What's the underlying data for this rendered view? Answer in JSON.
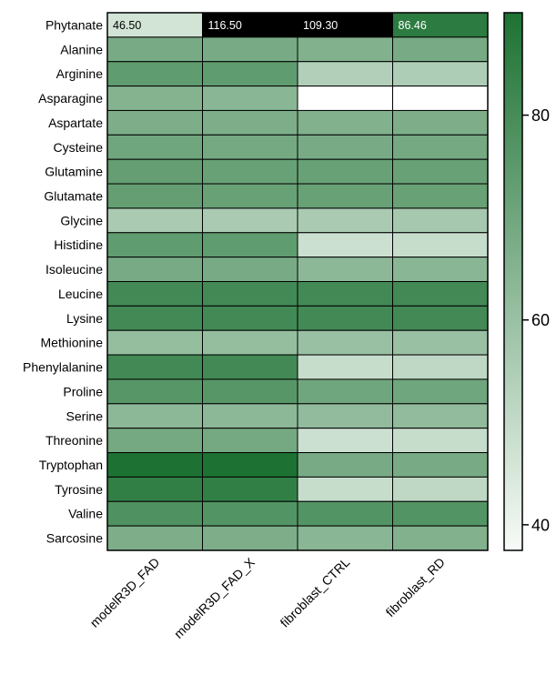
{
  "chart_data": {
    "type": "heatmap",
    "rows": [
      "Phytanate",
      "Alanine",
      "Arginine",
      "Asparagine",
      "Aspartate",
      "Cysteine",
      "Glutamine",
      "Glutamate",
      "Glycine",
      "Histidine",
      "Isoleucine",
      "Leucine",
      "Lysine",
      "Methionine",
      "Phenylalanine",
      "Proline",
      "Serine",
      "Threonine",
      "Tryptophan",
      "Tyrosine",
      "Valine",
      "Sarcosine"
    ],
    "columns": [
      "modelR3D_FAD",
      "modelR3D_FAD_X",
      "fibroblast_CTRL",
      "fibroblast_RD"
    ],
    "values": [
      [
        46.5,
        116.5,
        109.3,
        86.46
      ],
      [
        68,
        68,
        66,
        68
      ],
      [
        74,
        74,
        54,
        55
      ],
      [
        65,
        64,
        null,
        null
      ],
      [
        67,
        67,
        66,
        67
      ],
      [
        70,
        69,
        68,
        69
      ],
      [
        73,
        72,
        72,
        72
      ],
      [
        73,
        72,
        72,
        72
      ],
      [
        56,
        56,
        56,
        57
      ],
      [
        74,
        74,
        48,
        49
      ],
      [
        68,
        68,
        63,
        64
      ],
      [
        81,
        81,
        81,
        81
      ],
      [
        81,
        81,
        81,
        81
      ],
      [
        61,
        61,
        60,
        60
      ],
      [
        81,
        81,
        49,
        51
      ],
      [
        76,
        76,
        70,
        70
      ],
      [
        63,
        63,
        62,
        62
      ],
      [
        69,
        69,
        48,
        49
      ],
      [
        90,
        90,
        68,
        68
      ],
      [
        85,
        85,
        49,
        51
      ],
      [
        78,
        77,
        77,
        77
      ],
      [
        67,
        67,
        64,
        66
      ]
    ],
    "cell_labels": [
      [
        "46.50",
        "116.50",
        "109.30",
        "86.46"
      ]
    ],
    "colorbar": {
      "min": 37.5,
      "max": 90,
      "ticks": [
        40,
        60,
        80
      ],
      "color_low": "#f7fbf7",
      "color_high": "#1d7233"
    },
    "clip_high_color": "#000000",
    "missing_color": "#ffffff",
    "grid": true
  }
}
